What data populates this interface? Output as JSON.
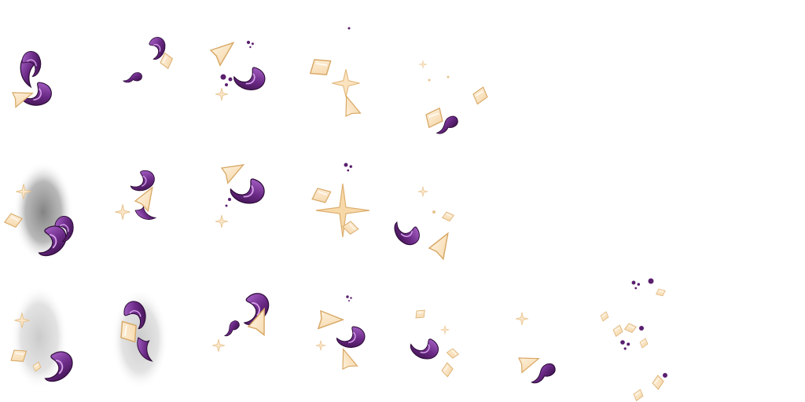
{
  "sprite_sheet": {
    "background": "#ffffff",
    "colors": {
      "purple_dark": "#3c0f4a",
      "purple": "#6b2a86",
      "purple_light": "#a35fc4",
      "gold_fill": "#fbe6c8",
      "gold_edge": "#dcae6f",
      "gold_light": "#fff3df",
      "shadow_dark": "#8a8a8a",
      "shadow_light": "#cfcfcf"
    },
    "rows": [
      {
        "frames": [
          {
            "shadow": "none",
            "glyphs": [
              "purple-flame",
              "purple-flame",
              "gold-shard"
            ]
          },
          {
            "shadow": "none",
            "glyphs": [
              "purple-flame",
              "purple-blob",
              "gold-shard"
            ]
          },
          {
            "shadow": "none",
            "glyphs": [
              "gold-shard",
              "purple-flame",
              "purple-dots",
              "sparkle-small"
            ]
          },
          {
            "shadow": "none",
            "glyphs": [
              "gold-shard",
              "sparkle",
              "gold-shard"
            ]
          },
          {
            "shadow": "none",
            "glyphs": [
              "gold-shard",
              "purple-blob",
              "gold-shard"
            ]
          }
        ]
      },
      {
        "frames": [
          {
            "shadow": "dark",
            "glyphs": [
              "sparkle-small",
              "gold-shard",
              "purple-flame"
            ]
          },
          {
            "shadow": "none",
            "glyphs": [
              "purple-flame",
              "gold-shard",
              "sparkle-small",
              "purple-flame"
            ]
          },
          {
            "shadow": "none",
            "glyphs": [
              "gold-shard",
              "purple-flame",
              "sparkle-small"
            ]
          },
          {
            "shadow": "none",
            "glyphs": [
              "sparkle-large",
              "gold-shard",
              "purple-dots"
            ]
          },
          {
            "shadow": "none",
            "glyphs": [
              "sparkle-small",
              "purple-flame",
              "gold-shard"
            ]
          }
        ]
      },
      {
        "frames": [
          {
            "shadow": "light",
            "glyphs": [
              "sparkle-small",
              "gold-shard",
              "purple-flame"
            ]
          },
          {
            "shadow": "light",
            "glyphs": [
              "purple-flame",
              "gold-shard",
              "purple-flame"
            ]
          },
          {
            "shadow": "none",
            "glyphs": [
              "purple-flame",
              "gold-shard",
              "purple-blob",
              "sparkle-small"
            ]
          },
          {
            "shadow": "none",
            "glyphs": [
              "gold-shard",
              "purple-flame",
              "sparkle-small"
            ]
          },
          {
            "shadow": "none",
            "glyphs": [
              "gold-shard",
              "purple-flame",
              "gold-shard"
            ]
          },
          {
            "shadow": "none",
            "glyphs": [
              "sparkle-small",
              "gold-shard",
              "purple-flame"
            ]
          },
          {
            "shadow": "none",
            "glyphs": [
              "purple-dots",
              "gold-shard",
              "purple-dots",
              "gold-shard"
            ]
          }
        ]
      }
    ]
  }
}
